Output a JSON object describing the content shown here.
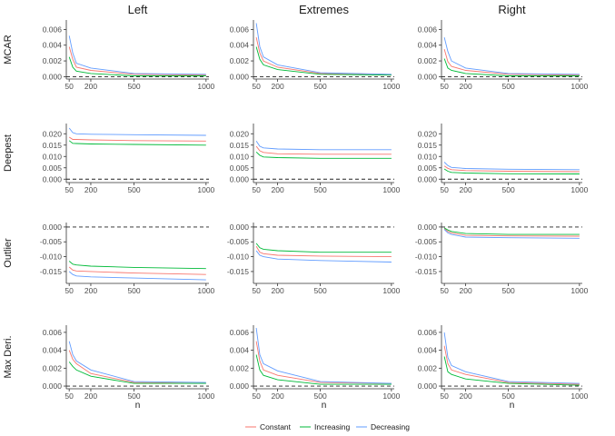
{
  "chart_data": {
    "type": "line",
    "columns": [
      "Left",
      "Extremes",
      "Right"
    ],
    "rows": [
      "MCAR",
      "Deepest",
      "Outlier",
      "Max Deri."
    ],
    "xlabel": "n",
    "x": [
      50,
      75,
      100,
      200,
      500,
      1000
    ],
    "x_ticks": [
      50,
      200,
      500,
      1000
    ],
    "xlim": [
      30,
      1020
    ],
    "reference_line": {
      "y": 0,
      "style": "dashed"
    },
    "legend": {
      "placement": "bottom",
      "entries": [
        {
          "name": "Constant",
          "color": "#F8766D"
        },
        {
          "name": "Increasing",
          "color": "#00BA38"
        },
        {
          "name": "Decreasing",
          "color": "#619CFF"
        }
      ]
    },
    "row_axes": [
      {
        "ylim": [
          -0.0003,
          0.0072
        ],
        "ticks": [
          0.0,
          0.002,
          0.004,
          0.006
        ],
        "tick_labels": [
          "0.000",
          "0.002",
          "0.004",
          "0.006"
        ]
      },
      {
        "ylim": [
          -0.0015,
          0.0245
        ],
        "ticks": [
          0.0,
          0.005,
          0.01,
          0.015,
          0.02
        ],
        "tick_labels": [
          "0.000",
          "0.005",
          "0.010",
          "0.015",
          "0.020"
        ]
      },
      {
        "ylim": [
          -0.019,
          0.0015
        ],
        "ticks": [
          0.0,
          -0.005,
          -0.01,
          -0.015
        ],
        "tick_labels": [
          "0.000",
          "-0.005",
          "-0.010",
          "-0.015"
        ]
      },
      {
        "ylim": [
          -0.0003,
          0.0068
        ],
        "ticks": [
          0.0,
          0.002,
          0.004,
          0.006
        ],
        "tick_labels": [
          "0.000",
          "0.002",
          "0.004",
          "0.006"
        ]
      }
    ],
    "panels": [
      {
        "row": "MCAR",
        "column": "Left",
        "series": [
          {
            "name": "Constant",
            "values": [
              0.0038,
              0.0022,
              0.0012,
              0.0008,
              0.0003,
              0.0002
            ]
          },
          {
            "name": "Increasing",
            "values": [
              0.0025,
              0.0012,
              0.0007,
              0.0004,
              0.0001,
              0.0001
            ]
          },
          {
            "name": "Decreasing",
            "values": [
              0.0052,
              0.003,
              0.0017,
              0.0011,
              0.0004,
              0.0003
            ]
          }
        ]
      },
      {
        "row": "MCAR",
        "column": "Extremes",
        "series": [
          {
            "name": "Constant",
            "values": [
              0.005,
              0.003,
              0.002,
              0.0012,
              0.0004,
              0.0002
            ]
          },
          {
            "name": "Increasing",
            "values": [
              0.0038,
              0.0022,
              0.0015,
              0.0009,
              0.0003,
              0.0002
            ]
          },
          {
            "name": "Decreasing",
            "values": [
              0.0068,
              0.0038,
              0.0025,
              0.0015,
              0.0005,
              0.0003
            ]
          }
        ]
      },
      {
        "row": "MCAR",
        "column": "Right",
        "series": [
          {
            "name": "Constant",
            "values": [
              0.0035,
              0.0019,
              0.0013,
              0.0008,
              0.0003,
              0.0002
            ]
          },
          {
            "name": "Increasing",
            "values": [
              0.0023,
              0.0011,
              0.0008,
              0.0004,
              0.0001,
              0.0001
            ]
          },
          {
            "name": "Decreasing",
            "values": [
              0.005,
              0.0032,
              0.002,
              0.0011,
              0.0004,
              0.0003
            ]
          }
        ]
      },
      {
        "row": "Deepest",
        "column": "Left",
        "series": [
          {
            "name": "Constant",
            "values": [
              0.0185,
              0.0175,
              0.0175,
              0.0173,
              0.017,
              0.0168
            ]
          },
          {
            "name": "Increasing",
            "values": [
              0.017,
              0.0158,
              0.0157,
              0.0155,
              0.0153,
              0.015
            ]
          },
          {
            "name": "Decreasing",
            "values": [
              0.0225,
              0.0205,
              0.02,
              0.0198,
              0.0196,
              0.0193
            ]
          }
        ]
      },
      {
        "row": "Deepest",
        "column": "Extremes",
        "series": [
          {
            "name": "Constant",
            "values": [
              0.0145,
              0.0125,
              0.0118,
              0.0112,
              0.011,
              0.011
            ]
          },
          {
            "name": "Increasing",
            "values": [
              0.012,
              0.0105,
              0.0098,
              0.0095,
              0.0092,
              0.0092
            ]
          },
          {
            "name": "Decreasing",
            "values": [
              0.0168,
              0.0145,
              0.0138,
              0.0133,
              0.013,
              0.013
            ]
          }
        ]
      },
      {
        "row": "Deepest",
        "column": "Right",
        "series": [
          {
            "name": "Constant",
            "values": [
              0.0058,
              0.0048,
              0.0042,
              0.0038,
              0.0035,
              0.0033
            ]
          },
          {
            "name": "Increasing",
            "values": [
              0.0045,
              0.0035,
              0.003,
              0.0027,
              0.0024,
              0.0023
            ]
          },
          {
            "name": "Decreasing",
            "values": [
              0.0075,
              0.006,
              0.0052,
              0.0047,
              0.0044,
              0.0042
            ]
          }
        ]
      },
      {
        "row": "Outlier",
        "column": "Left",
        "series": [
          {
            "name": "Constant",
            "values": [
              -0.0135,
              -0.0145,
              -0.0148,
              -0.015,
              -0.0155,
              -0.016
            ]
          },
          {
            "name": "Increasing",
            "values": [
              -0.0115,
              -0.0125,
              -0.0128,
              -0.0132,
              -0.0136,
              -0.014
            ]
          },
          {
            "name": "Decreasing",
            "values": [
              -0.015,
              -0.016,
              -0.0165,
              -0.0168,
              -0.0172,
              -0.0178
            ]
          }
        ]
      },
      {
        "row": "Outlier",
        "column": "Extremes",
        "series": [
          {
            "name": "Constant",
            "values": [
              -0.0065,
              -0.0085,
              -0.009,
              -0.0095,
              -0.0098,
              -0.01
            ]
          },
          {
            "name": "Increasing",
            "values": [
              -0.0055,
              -0.007,
              -0.0075,
              -0.008,
              -0.0085,
              -0.0085
            ]
          },
          {
            "name": "Decreasing",
            "values": [
              -0.008,
              -0.0095,
              -0.01,
              -0.0108,
              -0.0113,
              -0.0118
            ]
          }
        ]
      },
      {
        "row": "Outlier",
        "column": "Right",
        "series": [
          {
            "name": "Constant",
            "values": [
              -0.0005,
              -0.0015,
              -0.002,
              -0.0028,
              -0.003,
              -0.0031
            ]
          },
          {
            "name": "Increasing",
            "values": [
              -0.0003,
              -0.001,
              -0.0015,
              -0.0022,
              -0.0025,
              -0.0025
            ]
          },
          {
            "name": "Decreasing",
            "values": [
              -0.0008,
              -0.002,
              -0.0025,
              -0.0034,
              -0.0036,
              -0.0038
            ]
          }
        ]
      },
      {
        "row": "Max Deri.",
        "column": "Left",
        "series": [
          {
            "name": "Constant",
            "values": [
              0.004,
              0.003,
              0.0025,
              0.0014,
              0.0004,
              0.0003
            ]
          },
          {
            "name": "Increasing",
            "values": [
              0.0027,
              0.0022,
              0.0018,
              0.0011,
              0.0003,
              0.0003
            ]
          },
          {
            "name": "Decreasing",
            "values": [
              0.005,
              0.0035,
              0.0028,
              0.0018,
              0.0005,
              0.0004
            ]
          }
        ]
      },
      {
        "row": "Max Deri.",
        "column": "Extremes",
        "series": [
          {
            "name": "Constant",
            "values": [
              0.005,
              0.0028,
              0.0018,
              0.0012,
              0.0004,
              0.0003
            ]
          },
          {
            "name": "Increasing",
            "values": [
              0.0035,
              0.0018,
              0.0012,
              0.0007,
              0.0002,
              0.0002
            ]
          },
          {
            "name": "Decreasing",
            "values": [
              0.0065,
              0.0035,
              0.0025,
              0.0017,
              0.0005,
              0.0003
            ]
          }
        ]
      },
      {
        "row": "Max Deri.",
        "column": "Right",
        "series": [
          {
            "name": "Constant",
            "values": [
              0.0045,
              0.0025,
              0.0018,
              0.0013,
              0.0004,
              0.0002
            ]
          },
          {
            "name": "Increasing",
            "values": [
              0.0033,
              0.0016,
              0.0013,
              0.0008,
              0.0003,
              0.0001
            ]
          },
          {
            "name": "Decreasing",
            "values": [
              0.006,
              0.0032,
              0.0023,
              0.0016,
              0.0005,
              0.0003
            ]
          }
        ]
      }
    ]
  }
}
